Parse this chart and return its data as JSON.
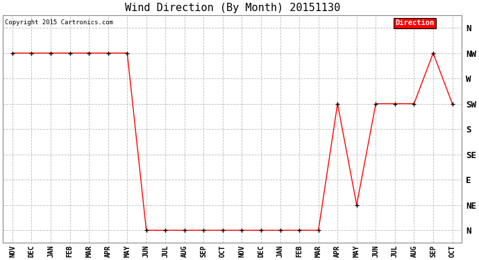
{
  "title": "Wind Direction (By Month) 20151130",
  "copyright": "Copyright 2015 Cartronics.com",
  "legend_label": "Direction",
  "legend_bg": "#ff0000",
  "legend_text_color": "#ffffff",
  "x_labels": [
    "NOV",
    "DEC",
    "JAN",
    "FEB",
    "MAR",
    "APR",
    "MAY",
    "JUN",
    "JUL",
    "AUG",
    "SEP",
    "OCT",
    "NOV",
    "DEC",
    "JAN",
    "FEB",
    "MAR",
    "APR",
    "MAY",
    "JUN",
    "JUL",
    "AUG",
    "SEP",
    "OCT"
  ],
  "y_labels": [
    "N",
    "NE",
    "E",
    "SE",
    "S",
    "SW",
    "W",
    "NW",
    "N"
  ],
  "y_values": [
    0,
    1,
    2,
    3,
    4,
    5,
    6,
    7,
    8
  ],
  "direction_data": {
    "months": [
      0,
      1,
      2,
      3,
      4,
      5,
      6,
      7,
      8,
      9,
      10,
      11,
      12,
      13,
      14,
      15,
      16,
      17,
      18,
      19,
      20,
      21,
      22,
      23
    ],
    "values": [
      7,
      7,
      7,
      7,
      7,
      7,
      7,
      0,
      0,
      0,
      0,
      0,
      0,
      0,
      0,
      0,
      0,
      5,
      1,
      5,
      5,
      5,
      7,
      5
    ]
  },
  "line_color": "#ff0000",
  "marker_color": "#000000",
  "grid_color": "#bbbbbb",
  "bg_color": "#ffffff",
  "plot_bg_color": "#ffffff",
  "title_fontsize": 11,
  "axis_label_fontsize": 7
}
